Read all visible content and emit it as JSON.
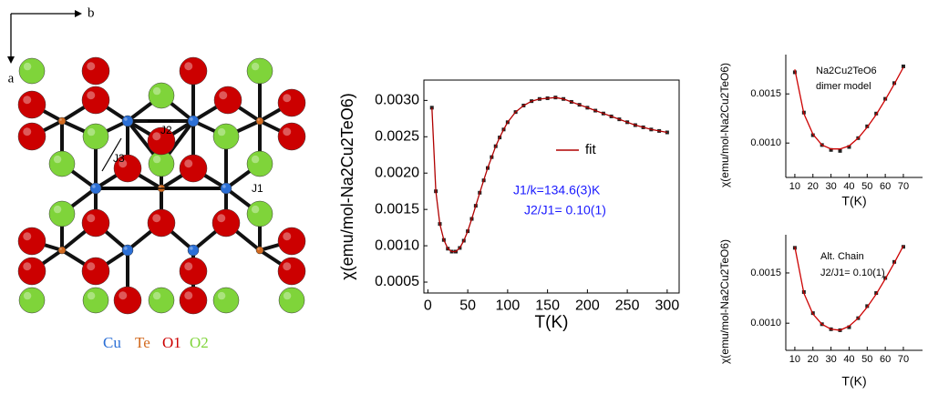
{
  "diagram": {
    "axis_labels": [
      "a",
      "b"
    ],
    "couplings": [
      "J2",
      "J3",
      "J1"
    ],
    "legend": [
      {
        "label": "Cu",
        "color": "#2b6fd6"
      },
      {
        "label": "Te",
        "color": "#d2691e"
      },
      {
        "label": "O1",
        "color": "#cc0000"
      },
      {
        "label": "O2",
        "color": "#7fd43a"
      }
    ]
  },
  "chart_data": [
    {
      "type": "line",
      "xlabel": "T(K)",
      "ylabel": "χ(emu/mol-Na2Cu2TeO6)",
      "x": [
        5,
        10,
        15,
        20,
        25,
        30,
        35,
        40,
        45,
        50,
        55,
        60,
        65,
        70,
        75,
        80,
        85,
        90,
        95,
        100,
        110,
        120,
        130,
        140,
        150,
        160,
        170,
        180,
        190,
        200,
        210,
        220,
        230,
        240,
        250,
        260,
        270,
        280,
        290,
        300
      ],
      "series": [
        {
          "style": "markers",
          "color": "#222222",
          "values": [
            0.0029,
            0.00175,
            0.0013,
            0.00108,
            0.00096,
            0.00092,
            0.00092,
            0.00097,
            0.00107,
            0.0012,
            0.00137,
            0.00155,
            0.00173,
            0.0019,
            0.00207,
            0.00222,
            0.00237,
            0.00249,
            0.0026,
            0.0027,
            0.00284,
            0.00293,
            0.00299,
            0.00302,
            0.00303,
            0.00304,
            0.00302,
            0.00298,
            0.00294,
            0.0029,
            0.00286,
            0.00282,
            0.00278,
            0.00274,
            0.0027,
            0.00266,
            0.00263,
            0.0026,
            0.00258,
            0.00256
          ]
        },
        {
          "name": "fit",
          "style": "line",
          "color": "#b00000",
          "values": [
            0.0029,
            0.00175,
            0.0013,
            0.00108,
            0.00096,
            0.00092,
            0.00092,
            0.00097,
            0.00107,
            0.0012,
            0.00137,
            0.00155,
            0.00173,
            0.0019,
            0.00207,
            0.00222,
            0.00237,
            0.00249,
            0.0026,
            0.0027,
            0.00284,
            0.00293,
            0.00299,
            0.00302,
            0.00303,
            0.00304,
            0.00302,
            0.00298,
            0.00294,
            0.0029,
            0.00286,
            0.00282,
            0.00278,
            0.00274,
            0.0027,
            0.00266,
            0.00263,
            0.0026,
            0.00258,
            0.00256
          ]
        }
      ],
      "xlim": [
        -5,
        315
      ],
      "xticks": [
        0,
        50,
        100,
        150,
        200,
        250,
        300
      ],
      "ylim": [
        0.00035,
        0.00328
      ],
      "yticks": [
        {
          "value": 0.0005,
          "label": "0.0005"
        },
        {
          "value": 0.001,
          "label": "0.0010"
        },
        {
          "value": 0.0015,
          "label": "0.0015"
        },
        {
          "value": 0.002,
          "label": "0.0020"
        },
        {
          "value": 0.0025,
          "label": "0.0025"
        },
        {
          "value": 0.003,
          "label": "0.0030"
        }
      ],
      "annotations": [
        {
          "text": "J1/k=134.6(3)K",
          "color": "#1a1aff"
        },
        {
          "text": "J2/J1= 0.10(1)",
          "color": "#1a1aff"
        }
      ]
    },
    {
      "type": "line",
      "xlabel": "T(K)",
      "ylabel": "χ(emu/mol-Na2Cu2TeO6)",
      "x": [
        10,
        15,
        20,
        25,
        30,
        35,
        40,
        45,
        50,
        55,
        60,
        65,
        70
      ],
      "series": [
        {
          "style": "markers",
          "color": "#222222",
          "values": [
            0.00172,
            0.00131,
            0.00108,
            0.00098,
            0.00093,
            0.00092,
            0.00096,
            0.00105,
            0.00117,
            0.0013,
            0.00145,
            0.00161,
            0.00178
          ]
        },
        {
          "style": "line",
          "color": "#cc0000",
          "values": [
            0.00175,
            0.0013,
            0.00109,
            0.00098,
            0.00094,
            0.00094,
            0.00097,
            0.00105,
            0.00116,
            0.00129,
            0.00144,
            0.0016,
            0.00177
          ]
        }
      ],
      "xlim": [
        5,
        80.6
      ],
      "xticks": [
        10,
        20,
        30,
        40,
        50,
        60,
        70
      ],
      "ylim": [
        0.00065,
        0.0019
      ],
      "yticks": [
        {
          "value": 0.001,
          "label": "0.0010"
        },
        {
          "value": 0.0015,
          "label": "0.0015"
        }
      ],
      "annotations": [
        {
          "text": "Na2Cu2TeO6",
          "color": "#000000"
        },
        {
          "text": "dimer model",
          "color": "#000000"
        }
      ]
    },
    {
      "type": "line",
      "xlabel": "T(K)",
      "ylabel": "χ(emu/mol-Na2Cu2TeO6)",
      "x": [
        10,
        15,
        20,
        25,
        30,
        35,
        40,
        45,
        50,
        55,
        60,
        65,
        70
      ],
      "series": [
        {
          "style": "markers",
          "color": "#222222",
          "values": [
            0.00175,
            0.00131,
            0.0011,
            0.00099,
            0.00094,
            0.00093,
            0.00096,
            0.00105,
            0.00117,
            0.0013,
            0.00145,
            0.00161,
            0.00176
          ]
        },
        {
          "style": "line",
          "color": "#cc0000",
          "values": [
            0.00176,
            0.0013,
            0.00109,
            0.00099,
            0.00094,
            0.00093,
            0.00097,
            0.00105,
            0.00116,
            0.00129,
            0.00144,
            0.0016,
            0.00177
          ]
        }
      ],
      "xlim": [
        5,
        80.6
      ],
      "xticks": [
        10,
        20,
        30,
        40,
        50,
        60,
        70
      ],
      "ylim": [
        0.00073,
        0.00188
      ],
      "yticks": [
        {
          "value": 0.001,
          "label": "0.0010"
        },
        {
          "value": 0.0015,
          "label": "0.0015"
        }
      ],
      "annotations": [
        {
          "text": "Alt. Chain",
          "color": "#000000"
        },
        {
          "text": "J2/J1= 0.10(1)",
          "color": "#000000"
        }
      ]
    }
  ]
}
